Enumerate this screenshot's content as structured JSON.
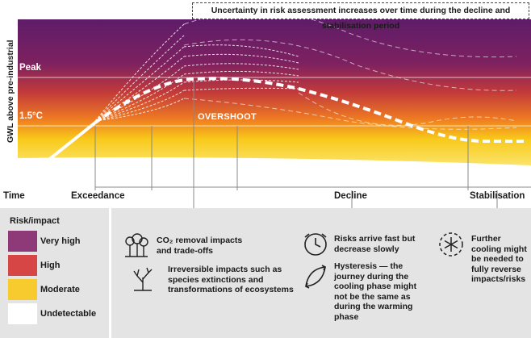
{
  "header": {
    "uncertainty_note": "Uncertainty in risk assessment increases over time during the decline and stabilisation period"
  },
  "chart": {
    "y_axis_label": "GWL above pre-industrial",
    "x_axis_label": "Time",
    "levels": {
      "peak": "Peak",
      "threshold": "1.5°C"
    },
    "overshoot_label": "OVERSHOOT",
    "phases": [
      "Exceedance",
      "Decline",
      "Stabilisation"
    ],
    "colors": {
      "very_high": "#5c1a66",
      "high": "#d94a3c",
      "moderate": "#f5cf1c",
      "undetectable": "#ffffff"
    }
  },
  "legend": {
    "title": "Risk/impact",
    "items": [
      {
        "label": "Very high",
        "color": "#8e3a78"
      },
      {
        "label": "High",
        "color": "#d64645"
      },
      {
        "label": "Moderate",
        "color": "#f7cb2e"
      },
      {
        "label": "Undetectable",
        "color": "#ffffff"
      }
    ]
  },
  "impacts": {
    "overshoot_items": [
      {
        "icon": "tree-removal-icon",
        "lines": [
          "CO₂ removal impacts",
          "and trade-offs"
        ]
      },
      {
        "icon": "dead-tree-icon",
        "lines": [
          "Irreversible impacts such as",
          "species extinctions and",
          "transformations of ecosystems"
        ]
      }
    ],
    "decline_items": [
      {
        "icon": "clock-icon",
        "lines": [
          "Risks arrive fast but",
          "decrease slowly"
        ]
      },
      {
        "icon": "hysteresis-icon",
        "lines": [
          "Hysteresis — the",
          "journey during the",
          "cooling phase might",
          "not be the same as",
          "during the warming",
          "phase"
        ]
      }
    ],
    "stabilisation_items": [
      {
        "icon": "snowflake-icon",
        "lines": [
          "Further",
          "cooling might",
          "be needed to",
          "fully reverse",
          "impacts/risks"
        ]
      }
    ]
  }
}
